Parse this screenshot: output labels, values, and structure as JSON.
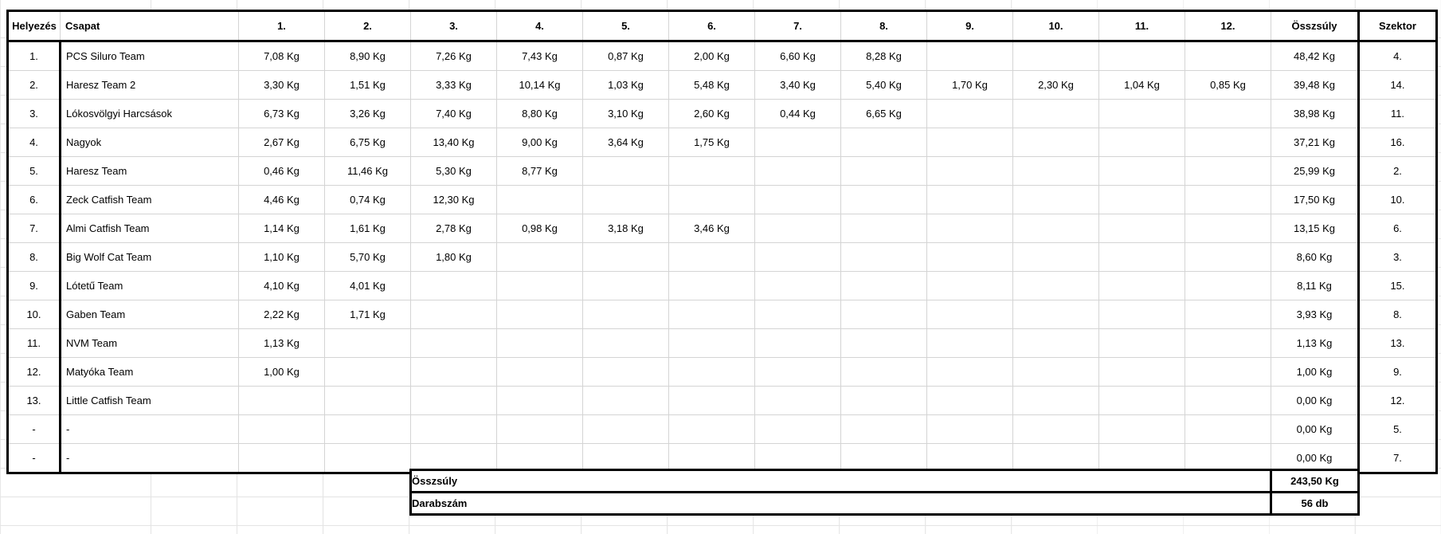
{
  "table": {
    "headers": [
      "Helyezés",
      "Csapat",
      "1.",
      "2.",
      "3.",
      "4.",
      "5.",
      "6.",
      "7.",
      "8.",
      "9.",
      "10.",
      "11.",
      "12.",
      "Összsúly",
      "Szektor"
    ],
    "rows": [
      {
        "rank": "1.",
        "team": "PCS Siluro Team",
        "weights": [
          "7,08 Kg",
          "8,90 Kg",
          "7,26 Kg",
          "7,43 Kg",
          "0,87 Kg",
          "2,00 Kg",
          "6,60 Kg",
          "8,28 Kg",
          "",
          "",
          "",
          ""
        ],
        "total": "48,42 Kg",
        "sector": "4."
      },
      {
        "rank": "2.",
        "team": "Haresz Team 2",
        "weights": [
          "3,30 Kg",
          "1,51 Kg",
          "3,33 Kg",
          "10,14 Kg",
          "1,03 Kg",
          "5,48 Kg",
          "3,40 Kg",
          "5,40 Kg",
          "1,70 Kg",
          "2,30 Kg",
          "1,04 Kg",
          "0,85 Kg"
        ],
        "total": "39,48 Kg",
        "sector": "14."
      },
      {
        "rank": "3.",
        "team": "Lókosvölgyi Harcsások",
        "weights": [
          "6,73 Kg",
          "3,26 Kg",
          "7,40 Kg",
          "8,80 Kg",
          "3,10 Kg",
          "2,60 Kg",
          "0,44 Kg",
          "6,65 Kg",
          "",
          "",
          "",
          ""
        ],
        "total": "38,98 Kg",
        "sector": "11."
      },
      {
        "rank": "4.",
        "team": "Nagyok",
        "weights": [
          "2,67 Kg",
          "6,75 Kg",
          "13,40 Kg",
          "9,00 Kg",
          "3,64 Kg",
          "1,75 Kg",
          "",
          "",
          "",
          "",
          "",
          ""
        ],
        "total": "37,21 Kg",
        "sector": "16."
      },
      {
        "rank": "5.",
        "team": "Haresz Team",
        "weights": [
          "0,46 Kg",
          "11,46 Kg",
          "5,30 Kg",
          "8,77 Kg",
          "",
          "",
          "",
          "",
          "",
          "",
          "",
          ""
        ],
        "total": "25,99 Kg",
        "sector": "2."
      },
      {
        "rank": "6.",
        "team": "Zeck Catfish Team",
        "weights": [
          "4,46 Kg",
          "0,74 Kg",
          "12,30 Kg",
          "",
          "",
          "",
          "",
          "",
          "",
          "",
          "",
          ""
        ],
        "total": "17,50 Kg",
        "sector": "10."
      },
      {
        "rank": "7.",
        "team": "Almi Catfish Team",
        "weights": [
          "1,14 Kg",
          "1,61 Kg",
          "2,78 Kg",
          "0,98 Kg",
          "3,18 Kg",
          "3,46 Kg",
          "",
          "",
          "",
          "",
          "",
          ""
        ],
        "total": "13,15 Kg",
        "sector": "6."
      },
      {
        "rank": "8.",
        "team": "Big Wolf Cat Team",
        "weights": [
          "1,10 Kg",
          "5,70 Kg",
          "1,80 Kg",
          "",
          "",
          "",
          "",
          "",
          "",
          "",
          "",
          ""
        ],
        "total": "8,60 Kg",
        "sector": "3."
      },
      {
        "rank": "9.",
        "team": "Lótetű Team",
        "weights": [
          "4,10 Kg",
          "4,01 Kg",
          "",
          "",
          "",
          "",
          "",
          "",
          "",
          "",
          "",
          ""
        ],
        "total": "8,11 Kg",
        "sector": "15."
      },
      {
        "rank": "10.",
        "team": "Gaben Team",
        "weights": [
          "2,22 Kg",
          "1,71 Kg",
          "",
          "",
          "",
          "",
          "",
          "",
          "",
          "",
          "",
          ""
        ],
        "total": "3,93 Kg",
        "sector": "8."
      },
      {
        "rank": "11.",
        "team": "NVM Team",
        "weights": [
          "1,13 Kg",
          "",
          "",
          "",
          "",
          "",
          "",
          "",
          "",
          "",
          "",
          ""
        ],
        "total": "1,13 Kg",
        "sector": "13."
      },
      {
        "rank": "12.",
        "team": "Matyóka Team",
        "weights": [
          "1,00 Kg",
          "",
          "",
          "",
          "",
          "",
          "",
          "",
          "",
          "",
          "",
          ""
        ],
        "total": "1,00 Kg",
        "sector": "9."
      },
      {
        "rank": "13.",
        "team": "Little Catfish Team",
        "weights": [
          "",
          "",
          "",
          "",
          "",
          "",
          "",
          "",
          "",
          "",
          "",
          ""
        ],
        "total": "0,00 Kg",
        "sector": "12."
      },
      {
        "rank": "-",
        "team": "-",
        "weights": [
          "",
          "",
          "",
          "",
          "",
          "",
          "",
          "",
          "",
          "",
          "",
          ""
        ],
        "total": "0,00 Kg",
        "sector": "5."
      },
      {
        "rank": "-",
        "team": "-",
        "weights": [
          "",
          "",
          "",
          "",
          "",
          "",
          "",
          "",
          "",
          "",
          "",
          ""
        ],
        "total": "0,00 Kg",
        "sector": "7."
      }
    ],
    "footer": [
      {
        "label": "Összsúly",
        "value": "243,50 Kg"
      },
      {
        "label": "Darabszám",
        "value": "56 db"
      }
    ]
  },
  "colors": {
    "grid": "#d4d4d4",
    "thick_border": "#000000",
    "background": "#ffffff",
    "text": "#000000"
  }
}
